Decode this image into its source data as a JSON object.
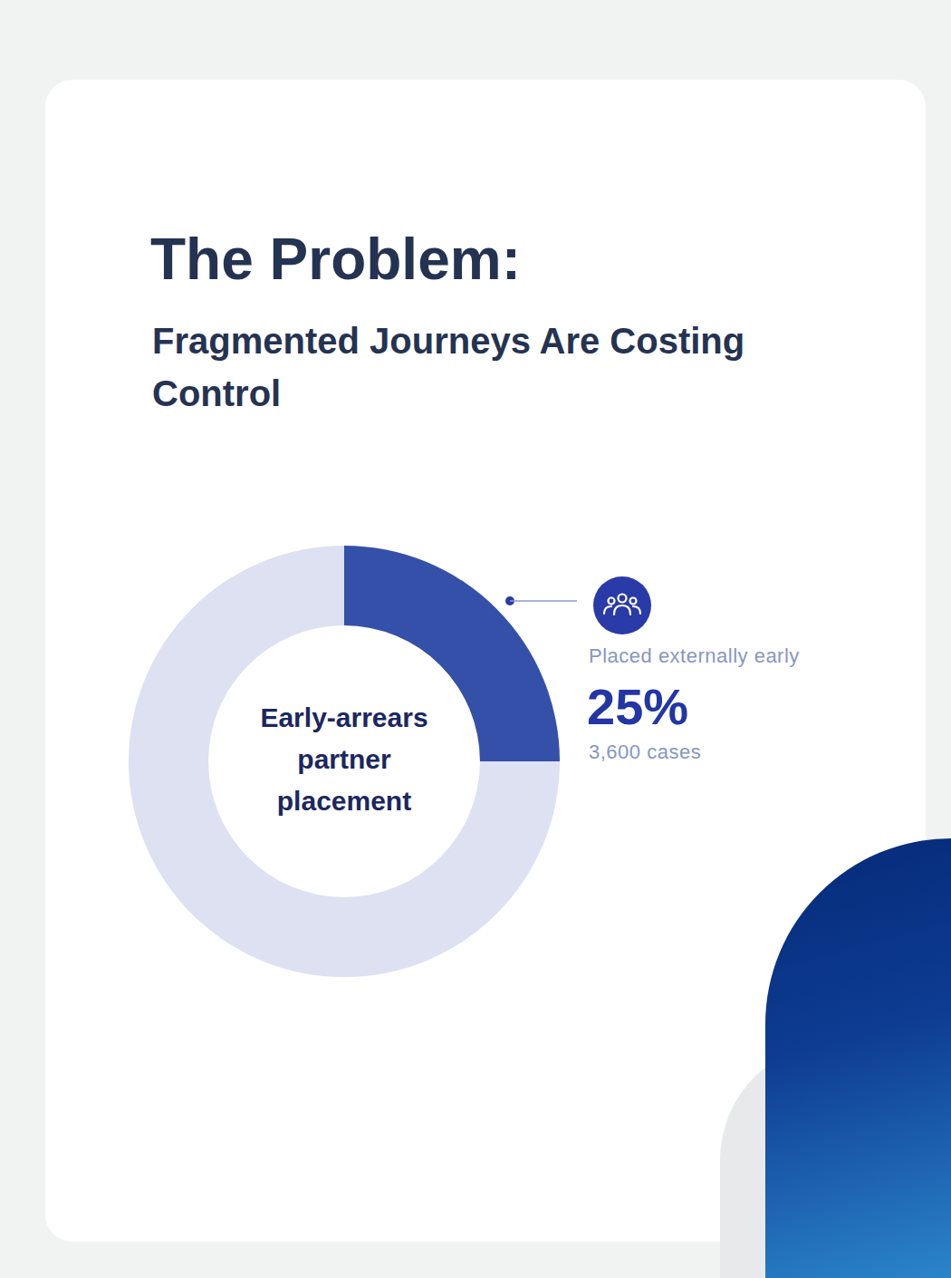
{
  "chart_data": {
    "type": "donut",
    "title": "The Problem:",
    "subtitle": "Fragmented Journeys Are Costing Control",
    "center_label": "Early-arrears partner placement",
    "categories": [
      "Placed externally early",
      null
    ],
    "values": [
      25,
      75
    ],
    "value_labels": [
      "25%",
      null
    ],
    "detail_labels": [
      "3,600 cases",
      null
    ],
    "colors": [
      "#3550a8",
      "#dde1f1"
    ]
  }
}
